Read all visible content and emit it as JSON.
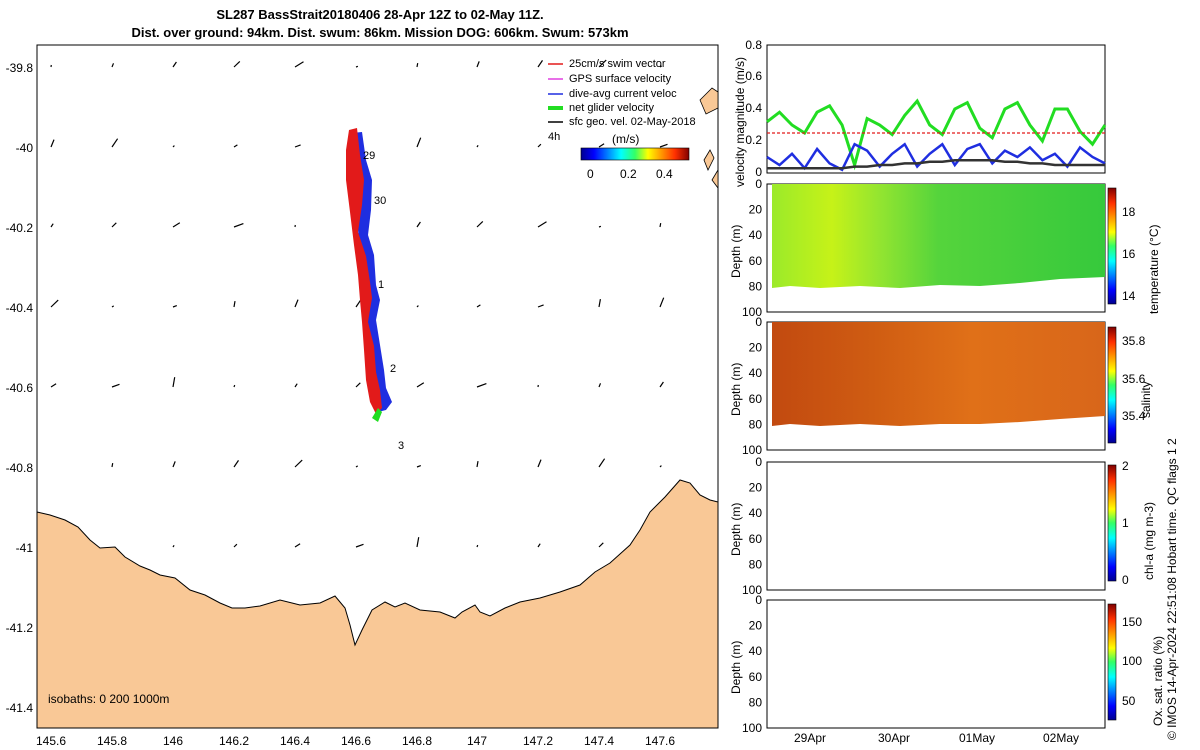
{
  "title": {
    "line1": "SL287 BassStrait20180406 28-Apr 12Z to 02-May 11Z.",
    "line2": "Dist. over ground: 94km. Dist. swum: 86km. Mission DOG: 606km. Swum: 573km"
  },
  "credit": "© IMOS 14-Apr-2024 22:51:08 Hobart time. QC flags 1  2",
  "map": {
    "lon_ticks": [
      "145.6",
      "145.8",
      "146",
      "146.2",
      "146.4",
      "146.6",
      "146.8",
      "147",
      "147.2",
      "147.4",
      "147.6"
    ],
    "lat_ticks": [
      "-39.8",
      "-40",
      "-40.2",
      "-40.4",
      "-40.6",
      "-40.8",
      "-41",
      "-41.2",
      "-41.4"
    ],
    "legend": [
      {
        "label": "25cm/s swim vector",
        "color": "#e21a1a"
      },
      {
        "label": "GPS surface velocity",
        "color": "#e040e0"
      },
      {
        "label": "dive-avg current veloc",
        "color": "#1f2ee0"
      },
      {
        "label": "net glider velocity",
        "color": "#22dd22"
      },
      {
        "label": "sfc geo. vel. 02-May-2018",
        "color": "#000000"
      }
    ],
    "colorbar_unit": "(m/s)",
    "colorbar_ticks": [
      "0",
      "0.2",
      "0.4"
    ],
    "colorbar_extra": "4h",
    "day_labels": [
      "29",
      "30",
      "1",
      "2",
      "3"
    ],
    "isobaths_label": "isobaths: 0   200  1000m",
    "land_color": "#f9c896"
  },
  "chart_data": [
    {
      "type": "line",
      "title": "",
      "ylabel": "velocity magnitude (m/s)",
      "ylim": [
        0,
        0.8
      ],
      "yticks": [
        "0",
        "0.2",
        "0.4",
        "0.6",
        "0.8"
      ],
      "xlim": [
        "28-Apr 12:00",
        "02-May 11:00"
      ],
      "series": [
        {
          "color": "#22dd22",
          "values": [
            0.32,
            0.38,
            0.3,
            0.25,
            0.38,
            0.42,
            0.3,
            0.05,
            0.34,
            0.3,
            0.24,
            0.36,
            0.45,
            0.3,
            0.24,
            0.4,
            0.44,
            0.28,
            0.22,
            0.4,
            0.44,
            0.3,
            0.2,
            0.4,
            0.4,
            0.26,
            0.18,
            0.3
          ]
        },
        {
          "color": "#1f2ee0",
          "values": [
            0.1,
            0.05,
            0.12,
            0.03,
            0.15,
            0.06,
            0.02,
            0.18,
            0.14,
            0.04,
            0.12,
            0.18,
            0.04,
            0.12,
            0.18,
            0.05,
            0.15,
            0.18,
            0.06,
            0.14,
            0.1,
            0.16,
            0.08,
            0.12,
            0.04,
            0.16,
            0.1,
            0.06
          ]
        },
        {
          "color": "#e21a1a",
          "values": [
            0.25,
            0.25,
            0.25,
            0.25,
            0.25,
            0.25,
            0.25,
            0.25,
            0.25,
            0.25,
            0.25,
            0.25,
            0.25,
            0.25,
            0.25,
            0.25,
            0.25,
            0.25,
            0.25,
            0.25,
            0.25,
            0.25,
            0.25,
            0.25,
            0.25,
            0.25,
            0.25,
            0.25
          ]
        },
        {
          "color": "#333333",
          "values": [
            0.03,
            0.03,
            0.03,
            0.03,
            0.03,
            0.03,
            0.03,
            0.04,
            0.04,
            0.05,
            0.05,
            0.06,
            0.06,
            0.07,
            0.07,
            0.08,
            0.08,
            0.08,
            0.08,
            0.07,
            0.07,
            0.06,
            0.06,
            0.05,
            0.05,
            0.05,
            0.05,
            0.05
          ]
        }
      ]
    },
    {
      "type": "heatmap",
      "ylabel": "Depth (m)",
      "yticks": [
        "0",
        "20",
        "40",
        "60",
        "80",
        "100"
      ],
      "cbar_label": "temperature (°C)",
      "cbar_ticks": [
        "14",
        "16",
        "18"
      ]
    },
    {
      "type": "heatmap",
      "ylabel": "Depth (m)",
      "yticks": [
        "0",
        "20",
        "40",
        "60",
        "80",
        "100"
      ],
      "cbar_label": "salinity",
      "cbar_ticks": [
        "35.4",
        "35.6",
        "35.8"
      ]
    },
    {
      "type": "heatmap",
      "ylabel": "Depth (m)",
      "yticks": [
        "0",
        "20",
        "40",
        "60",
        "80",
        "100"
      ],
      "cbar_label": "chl-a (mg m-3)",
      "cbar_ticks": [
        "0",
        "1",
        "2"
      ]
    },
    {
      "type": "heatmap",
      "ylabel": "Depth (m)",
      "yticks": [
        "0",
        "20",
        "40",
        "60",
        "80",
        "100"
      ],
      "cbar_label": "Ox. sat. ratio (%)",
      "cbar_ticks": [
        "50",
        "100",
        "150"
      ],
      "xticks": [
        "29Apr",
        "30Apr",
        "01May",
        "02May"
      ]
    }
  ]
}
